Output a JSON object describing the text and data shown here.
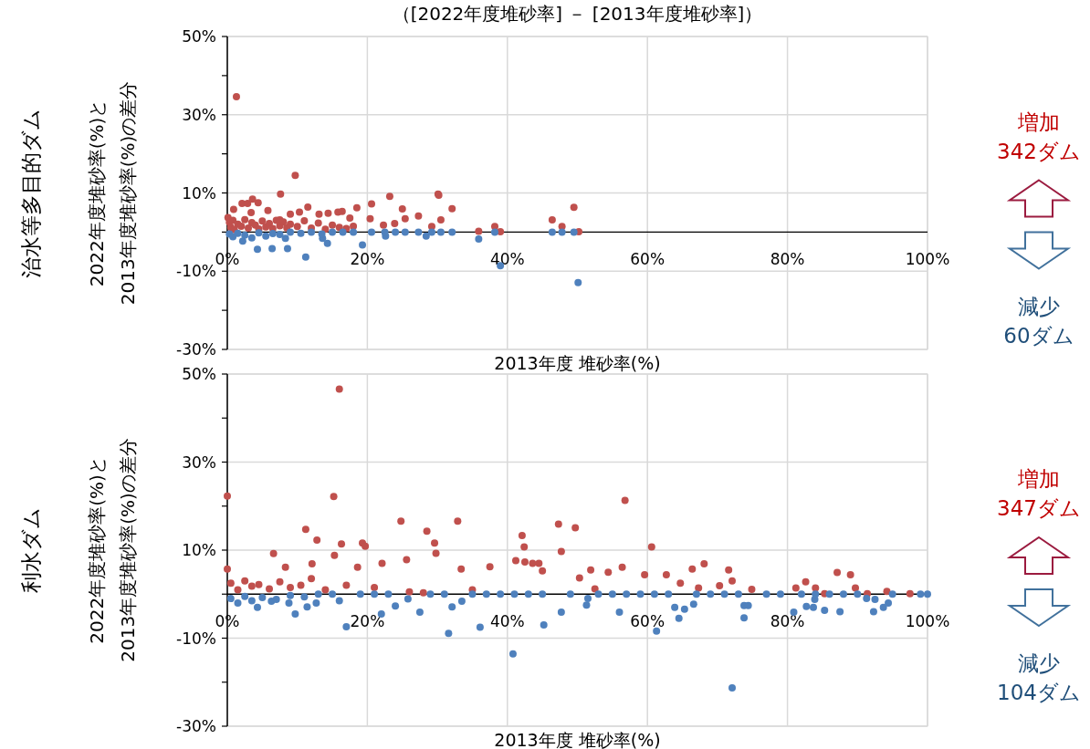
{
  "chart_data": [
    {
      "type": "scatter",
      "title": "（[2022年度堆砂率] － [2013年度堆砂率]）",
      "xlabel": "2013年度  堆砂率(%)",
      "ylabel": "2022年度堆砂率(%)と\n2013年度堆砂率(%)の差分",
      "annotations": [
        "治水等多目的ダム",
        "増加\n342ダム",
        "減少\n60ダム"
      ],
      "xlim": [
        0,
        100
      ],
      "ylim": [
        -30,
        50
      ],
      "xticks": [
        {
          "value": 0,
          "label": "0%"
        },
        {
          "value": 20,
          "label": "20%"
        },
        {
          "value": 40,
          "label": "40%"
        },
        {
          "value": 60,
          "label": "60%"
        },
        {
          "value": 80,
          "label": "80%"
        },
        {
          "value": 100,
          "label": "100%"
        }
      ],
      "yticks": [
        {
          "value": -30,
          "label": "-30%"
        },
        {
          "value": -20,
          "label": null
        },
        {
          "value": -10,
          "label": "-10%"
        },
        {
          "value": 0,
          "label": null
        },
        {
          "value": 10,
          "label": "10%"
        },
        {
          "value": 20,
          "label": null
        },
        {
          "value": 30,
          "label": "30%"
        },
        {
          "value": 40,
          "label": null
        },
        {
          "value": 50,
          "label": "50%"
        }
      ],
      "grid": true,
      "marker": "circle",
      "series": [
        {
          "color": "#c0504d",
          "x": [
            1.3,
            9.7,
            7.6,
            2.1,
            2.9,
            3.6,
            4.4,
            0.9,
            3.4,
            5.8,
            9.0,
            11.5,
            10.3,
            13.1,
            14.4,
            15.8,
            16.4,
            17.5,
            18.5,
            20.6,
            20.4,
            23.2,
            25.0,
            25.4,
            23.9,
            22.3,
            27.3,
            30.1,
            30.2,
            30.5,
            32.1,
            29.2,
            35.9,
            38.2,
            39.0,
            46.4,
            47.8,
            49.5,
            50.2,
            0.1,
            7.5,
            0.3,
            0.5,
            0.8,
            1.0,
            1.5,
            2.0,
            2.5,
            3.0,
            3.5,
            4.0,
            4.5,
            5.0,
            5.5,
            6.0,
            6.5,
            7.0,
            7.5,
            8.0,
            8.5,
            9.0,
            10.0,
            11.0,
            12.0,
            13.0,
            14.0,
            15.0,
            16.0,
            17.0,
            18.0
          ],
          "values": [
            34.6,
            14.5,
            9.7,
            7.3,
            7.3,
            8.4,
            7.5,
            5.8,
            5.0,
            5.5,
            4.6,
            6.4,
            5.1,
            4.6,
            4.8,
            5.1,
            5.3,
            3.6,
            6.2,
            7.2,
            3.4,
            9.1,
            5.9,
            3.4,
            2.2,
            1.8,
            4.1,
            9.7,
            9.4,
            3.1,
            6.0,
            1.4,
            0.2,
            1.4,
            0.1,
            3.1,
            1.4,
            6.3,
            0.1,
            3.7,
            3.1,
            2.5,
            1.2,
            3.0,
            0.6,
            2.0,
            1.5,
            3.2,
            1.0,
            2.4,
            1.8,
            0.8,
            2.8,
            1.3,
            2.2,
            0.9,
            3.0,
            1.6,
            2.6,
            1.1,
            2.0,
            1.4,
            2.9,
            1.0,
            2.3,
            0.7,
            1.8,
            1.2,
            0.9,
            1.5
          ]
        },
        {
          "color": "#4f81bd",
          "x": [
            2.2,
            4.3,
            6.4,
            8.6,
            11.2,
            14.3,
            19.3,
            13.6,
            8.3,
            22.6,
            28.4,
            35.9,
            39.0,
            50.1,
            0.3,
            0.8,
            1.5,
            2.5,
            3.5,
            4.5,
            5.5,
            6.5,
            7.5,
            9.0,
            10.5,
            12.0,
            13.5,
            15.0,
            16.5,
            18.0,
            20.6,
            22.5,
            24.0,
            25.4,
            27.3,
            29.2,
            30.5,
            32.1,
            38.2,
            46.4,
            47.8,
            49.5
          ],
          "values": [
            -2.3,
            -4.4,
            -4.2,
            -4.2,
            -6.4,
            -2.9,
            -3.3,
            -1.6,
            -1.6,
            -1.0,
            -1.0,
            -1.8,
            -8.6,
            -12.9,
            -0.5,
            -1.2,
            -0.3,
            -0.8,
            -1.5,
            -0.2,
            -1.0,
            -0.4,
            -0.6,
            0,
            -0.3,
            0,
            -0.5,
            0,
            0,
            0,
            0,
            0,
            0,
            0,
            0,
            0,
            0,
            0,
            0,
            0,
            0,
            0
          ]
        }
      ]
    },
    {
      "type": "scatter",
      "xlabel": "2013年度  堆砂率(%)",
      "ylabel": "2022年度堆砂率(%)と\n2013年度堆砂率(%)の差分",
      "annotations": [
        "利水ダム",
        "増加\n347ダム",
        "減少\n104ダム"
      ],
      "xlim": [
        0,
        100
      ],
      "ylim": [
        -30,
        50
      ],
      "xticks": [
        {
          "value": 0,
          "label": "0%"
        },
        {
          "value": 20,
          "label": "20%"
        },
        {
          "value": 40,
          "label": "40%"
        },
        {
          "value": 60,
          "label": "60%"
        },
        {
          "value": 80,
          "label": "80%"
        },
        {
          "value": 100,
          "label": "100%"
        }
      ],
      "yticks": [
        {
          "value": -30,
          "label": "-30%"
        },
        {
          "value": -20,
          "label": null
        },
        {
          "value": -10,
          "label": "-10%"
        },
        {
          "value": 0,
          "label": null
        },
        {
          "value": 10,
          "label": "10%"
        },
        {
          "value": 20,
          "label": null
        },
        {
          "value": 30,
          "label": "30%"
        },
        {
          "value": 40,
          "label": null
        },
        {
          "value": 50,
          "label": "50%"
        }
      ],
      "grid": true,
      "marker": "circle",
      "series": [
        {
          "color": "#c0504d",
          "x": [
            16.0,
            0.0,
            15.2,
            0.0,
            24.8,
            32.9,
            11.2,
            28.5,
            12.8,
            16.3,
            19.3,
            19.7,
            29.6,
            6.6,
            15.3,
            29.8,
            25.6,
            42.1,
            42.4,
            41.2,
            47.3,
            47.7,
            49.7,
            8.3,
            12.1,
            18.6,
            22.1,
            42.5,
            43.6,
            44.5,
            37.5,
            33.4,
            45.0,
            56.8,
            60.6,
            68.1,
            71.6,
            66.4,
            62.7,
            59.6,
            56.4,
            54.4,
            51.9,
            50.3,
            70.3,
            72.1,
            87.1,
            89.0,
            82.6,
            81.2,
            84.0,
            85.3,
            89.7,
            91.4,
            94.2,
            97.5,
            74.9,
            67.3,
            64.7,
            52.5,
            0.5,
            1.5,
            2.5,
            3.5,
            4.5,
            6.0,
            7.5,
            9.0,
            10.5,
            12.0,
            14.0,
            17.0,
            21.0,
            26.0,
            28.0,
            35.0
          ],
          "values": [
            46.6,
            22.3,
            22.2,
            5.7,
            16.6,
            16.6,
            14.7,
            14.3,
            12.3,
            11.4,
            11.6,
            10.9,
            11.6,
            9.2,
            8.8,
            9.3,
            7.8,
            13.3,
            10.7,
            7.6,
            15.9,
            9.7,
            15.1,
            6.1,
            6.9,
            6.1,
            7.0,
            7.3,
            7.0,
            7.0,
            6.2,
            5.7,
            5.3,
            21.3,
            10.7,
            6.9,
            5.5,
            5.7,
            4.4,
            4.4,
            6.1,
            5.0,
            5.5,
            3.7,
            1.9,
            3.0,
            4.9,
            4.4,
            2.8,
            1.4,
            1.4,
            0.1,
            1.4,
            0.1,
            0.6,
            0.1,
            1.1,
            1.4,
            2.5,
            1.2,
            2.5,
            1.0,
            3.0,
            1.8,
            2.2,
            1.2,
            2.8,
            1.5,
            2.0,
            3.5,
            1.0,
            2.0,
            1.5,
            0.5,
            0.3,
            1.0
          ]
        },
        {
          "color": "#4f81bd",
          "x": [
            17.0,
            31.6,
            40.8,
            36.1,
            45.2,
            27.5,
            22.0,
            9.7,
            11.4,
            24.0,
            32.1,
            47.7,
            8.8,
            4.3,
            6.3,
            12.7,
            16.0,
            25.8,
            33.5,
            72.1,
            61.3,
            56.0,
            64.5,
            63.9,
            65.3,
            66.6,
            73.8,
            73.8,
            74.4,
            80.9,
            82.7,
            83.7,
            83.9,
            85.3,
            87.5,
            91.3,
            92.5,
            92.3,
            93.7,
            94.4,
            51.3,
            51.5,
            0.5,
            1.5,
            2.5,
            3.5,
            5.0,
            7.0,
            9.0,
            11.0,
            13.0,
            15.0,
            19.0,
            21.0,
            23.0,
            29.0,
            31.0,
            35.0,
            37.0,
            39.0,
            41.0,
            43.0,
            45.0,
            49.0,
            53.0,
            55.0,
            57.0,
            59.0,
            61.0,
            63.0,
            67.0,
            69.0,
            71.0,
            73.0,
            77.0,
            79.0,
            82.0,
            84.0,
            86.0,
            88.0,
            90.0,
            95.0,
            99.0,
            100.0
          ],
          "values": [
            -7.4,
            -8.9,
            -13.6,
            -7.5,
            -7.0,
            -4.1,
            -4.5,
            -4.5,
            -2.9,
            -2.7,
            -2.9,
            -4.1,
            -2.0,
            -3.0,
            -1.6,
            -2.0,
            -1.5,
            -1.1,
            -1.6,
            -21.3,
            -8.4,
            -4.1,
            -5.5,
            -3.0,
            -3.4,
            -2.3,
            -5.4,
            -2.6,
            -2.6,
            -4.1,
            -2.8,
            -3.0,
            -1.2,
            -3.7,
            -4.0,
            -1.0,
            -1.2,
            -4.0,
            -3.0,
            -2.0,
            -2.5,
            -1.0,
            -1.0,
            -2.0,
            -0.5,
            -1.5,
            -0.8,
            -1.2,
            -0.3,
            -0.6,
            0,
            0,
            0,
            0,
            0,
            0,
            0,
            0,
            0,
            0,
            0,
            0,
            0,
            0,
            0,
            0,
            0,
            0,
            0,
            0,
            0,
            0,
            0,
            0,
            0,
            0,
            0,
            0,
            0,
            0,
            0,
            0,
            0,
            0
          ]
        }
      ]
    }
  ]
}
